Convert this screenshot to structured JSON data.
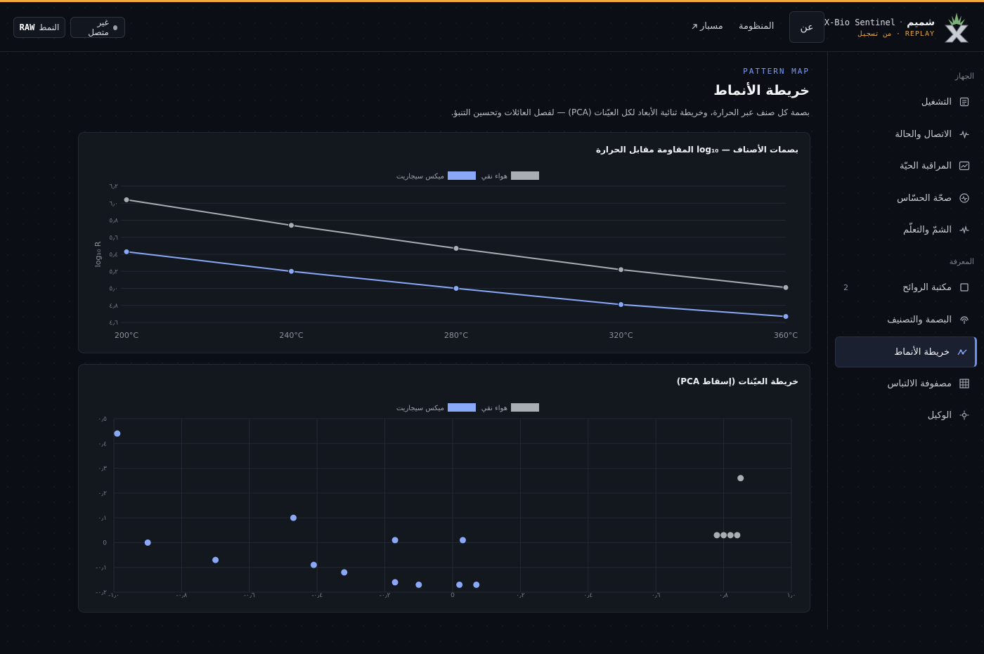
{
  "colors": {
    "accent": "#7f9cf5",
    "series_air": "#a9adb4",
    "series_mix": "#8aa8f8",
    "replay": "#e3a43f",
    "top_line": "#f0a93a"
  },
  "header": {
    "brand_ar": "شميم",
    "brand_sep": "·",
    "brand_en": "X-Bio Sentinel",
    "replay": "REPLAY",
    "replay_sep": "·",
    "replay_note": "من تسجيل",
    "nav_about": "عن",
    "nav_system": "المنظومة",
    "nav_path": "مسبار",
    "nav_path_icon": "arrow-up-right-icon",
    "status": "غير متصل",
    "mode_label": "النمط",
    "mode_value": "RAW"
  },
  "sidebar": {
    "section_device": "الجهاز",
    "section_knowledge": "المعرفة",
    "items": [
      {
        "label": "التشغيل",
        "icon": "document-icon"
      },
      {
        "label": "الاتصال والحالة",
        "icon": "pulse-icon"
      },
      {
        "label": "المراقبة الحيّة",
        "icon": "monitor-chart-icon"
      },
      {
        "label": "صحّة الحسّاس",
        "icon": "gauge-icon"
      },
      {
        "label": "الشمّ والتعلّم",
        "icon": "waveform-icon"
      },
      {
        "label": "مكتبة الروائح",
        "icon": "square-icon",
        "count": "2"
      },
      {
        "label": "البصمة والتصنيف",
        "icon": "fingerprint-icon"
      },
      {
        "label": "خريطة الأنماط",
        "icon": "pattern-map-icon",
        "active": true
      },
      {
        "label": "مصفوفة الالتباس",
        "icon": "grid-icon"
      },
      {
        "label": "الوكيل",
        "icon": "agent-icon"
      }
    ]
  },
  "main": {
    "eyebrow": "PATTERN MAP",
    "title": "خريطة الأنماط",
    "subtitle": "بصمة كل صنف عبر الحرارة، وخريطة ثنائية الأبعاد لكل العيّنات (PCA) — لفصل العائلات وتحسين التنبؤ."
  },
  "chart_data": [
    {
      "type": "line",
      "title": "بصمات الأصناف — log₁₀ المقاومة مقابل الحرارة",
      "ylabel": "log₁₀ R",
      "xlabel": "",
      "categories": [
        "200°C",
        "240°C",
        "280°C",
        "320°C",
        "360°C"
      ],
      "ylim": [
        4.6,
        6.2
      ],
      "yticks": [
        "٤٫٦",
        "٤٫٨",
        "٥٫٠",
        "٥٫٢",
        "٥٫٤",
        "٥٫٦",
        "٥٫٨",
        "٦٫٠",
        "٦٫٢"
      ],
      "legend": "top-center",
      "grid": true,
      "series": [
        {
          "name": "هواء نقي",
          "values": [
            6.04,
            5.74,
            5.47,
            5.22,
            5.01
          ]
        },
        {
          "name": "ميكس سيجاريت",
          "values": [
            5.43,
            5.2,
            5.0,
            4.81,
            4.67
          ]
        }
      ]
    },
    {
      "type": "scatter",
      "title": "خريطة العيّنات (إسقاط PCA)",
      "xlim": [
        -1.0,
        1.0
      ],
      "ylim": [
        -0.2,
        0.5
      ],
      "xticks": [
        {
          "v": -1.0,
          "label": "-١٫٠"
        },
        {
          "v": -0.8,
          "label": "-٠٫٨"
        },
        {
          "v": -0.6,
          "label": "-٠٫٦"
        },
        {
          "v": -0.4,
          "label": "-٠٫٤"
        },
        {
          "v": -0.2,
          "label": "-٠٫٢"
        },
        {
          "v": 0,
          "label": "0"
        },
        {
          "v": 0.2,
          "label": "٠٫٢"
        },
        {
          "v": 0.4,
          "label": "٠٫٤"
        },
        {
          "v": 0.6,
          "label": "٠٫٦"
        },
        {
          "v": 0.8,
          "label": "٠٫٨"
        },
        {
          "v": 1.0,
          "label": "١٫٠"
        }
      ],
      "yticks": [
        {
          "v": -0.2,
          "label": "-٠٫٢"
        },
        {
          "v": -0.1,
          "label": "-٠٫١"
        },
        {
          "v": 0,
          "label": "0"
        },
        {
          "v": 0.1,
          "label": "٠٫١"
        },
        {
          "v": 0.2,
          "label": "٠٫٢"
        },
        {
          "v": 0.3,
          "label": "٠٫٣"
        },
        {
          "v": 0.4,
          "label": "٠٫٤"
        },
        {
          "v": 0.5,
          "label": "٠٫٥"
        }
      ],
      "legend": "top-center",
      "grid": true,
      "series": [
        {
          "name": "هواء نقي",
          "points": [
            [
              0.78,
              0.03
            ],
            [
              0.8,
              0.03
            ],
            [
              0.82,
              0.03
            ],
            [
              0.84,
              0.03
            ],
            [
              0.85,
              0.26
            ]
          ]
        },
        {
          "name": "ميكس سيجاريت",
          "points": [
            [
              -0.99,
              0.44
            ],
            [
              -0.9,
              0.0
            ],
            [
              -0.7,
              -0.07
            ],
            [
              -0.47,
              0.1
            ],
            [
              -0.41,
              -0.09
            ],
            [
              -0.32,
              -0.12
            ],
            [
              -0.17,
              0.01
            ],
            [
              -0.17,
              -0.16
            ],
            [
              -0.1,
              -0.17
            ],
            [
              0.02,
              -0.17
            ],
            [
              0.03,
              0.01
            ],
            [
              0.07,
              -0.17
            ]
          ]
        }
      ]
    }
  ]
}
